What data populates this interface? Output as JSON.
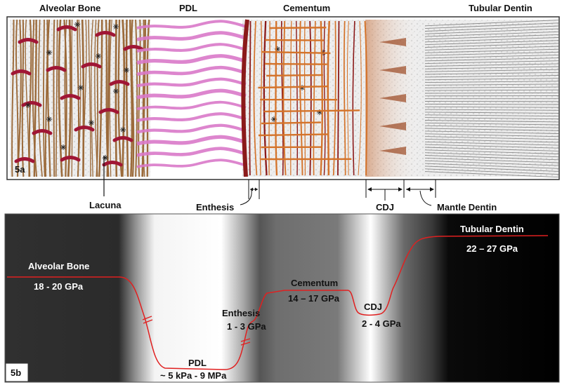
{
  "panel_a": {
    "tag": "5a",
    "regions": {
      "alveolar_bone": "Alveolar Bone",
      "pdl": "PDL",
      "cementum": "Cementum",
      "tubular_dentin": "Tubular Dentin"
    },
    "callouts": {
      "lacuna": "Lacuna",
      "enthesis": "Enthesis",
      "cdj": "CDJ",
      "mantle_dentin": "Mantle Dentin"
    }
  },
  "panel_b": {
    "tag": "5b",
    "labels": {
      "alveolar_bone": "Alveolar Bone",
      "alveolar_bone_value": "18 - 20 GPa",
      "pdl": "PDL",
      "pdl_value": "~ 5 kPa -  9 MPa",
      "enthesis": "Enthesis",
      "enthesis_value": "1 - 3 GPa",
      "cementum": "Cementum",
      "cementum_value": "14 – 17 GPa",
      "cdj": "CDJ",
      "cdj_value": "2 - 4 GPa",
      "tubular_dentin": "Tubular Dentin",
      "tubular_dentin_value": "22 – 27 GPa"
    }
  },
  "colors": {
    "bone_fiber": "#9b6a3a",
    "bone_cell": "#a01635",
    "pdl_fiber": "#d979c9",
    "cementum_fiber": "#d4732a",
    "cementum_edge": "#8b1a1a",
    "dentin_line": "#8a8a8a",
    "curve": "#e02020"
  }
}
